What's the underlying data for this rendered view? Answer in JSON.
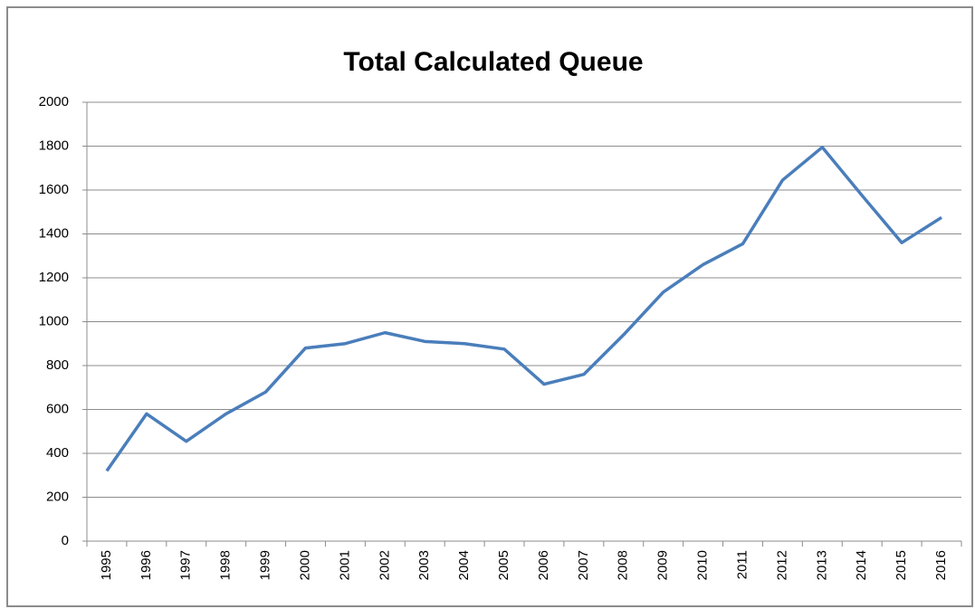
{
  "chart_data": {
    "type": "line",
    "title": "Total Calculated Queue",
    "categories": [
      "1995",
      "1996",
      "1997",
      "1998",
      "1999",
      "2000",
      "2001",
      "2002",
      "2003",
      "2004",
      "2005",
      "2006",
      "2007",
      "2008",
      "2009",
      "2010",
      "2011",
      "2012",
      "2013",
      "2014",
      "2015",
      "2016"
    ],
    "values": [
      320,
      580,
      455,
      580,
      680,
      880,
      900,
      950,
      910,
      900,
      875,
      715,
      760,
      940,
      1135,
      1260,
      1355,
      1645,
      1795,
      1575,
      1360,
      1475
    ],
    "color": "#4a7ebb",
    "ylim": [
      0,
      2000
    ],
    "yticks": [
      0,
      200,
      400,
      600,
      800,
      1000,
      1200,
      1400,
      1600,
      1800,
      2000
    ],
    "grid": true
  }
}
